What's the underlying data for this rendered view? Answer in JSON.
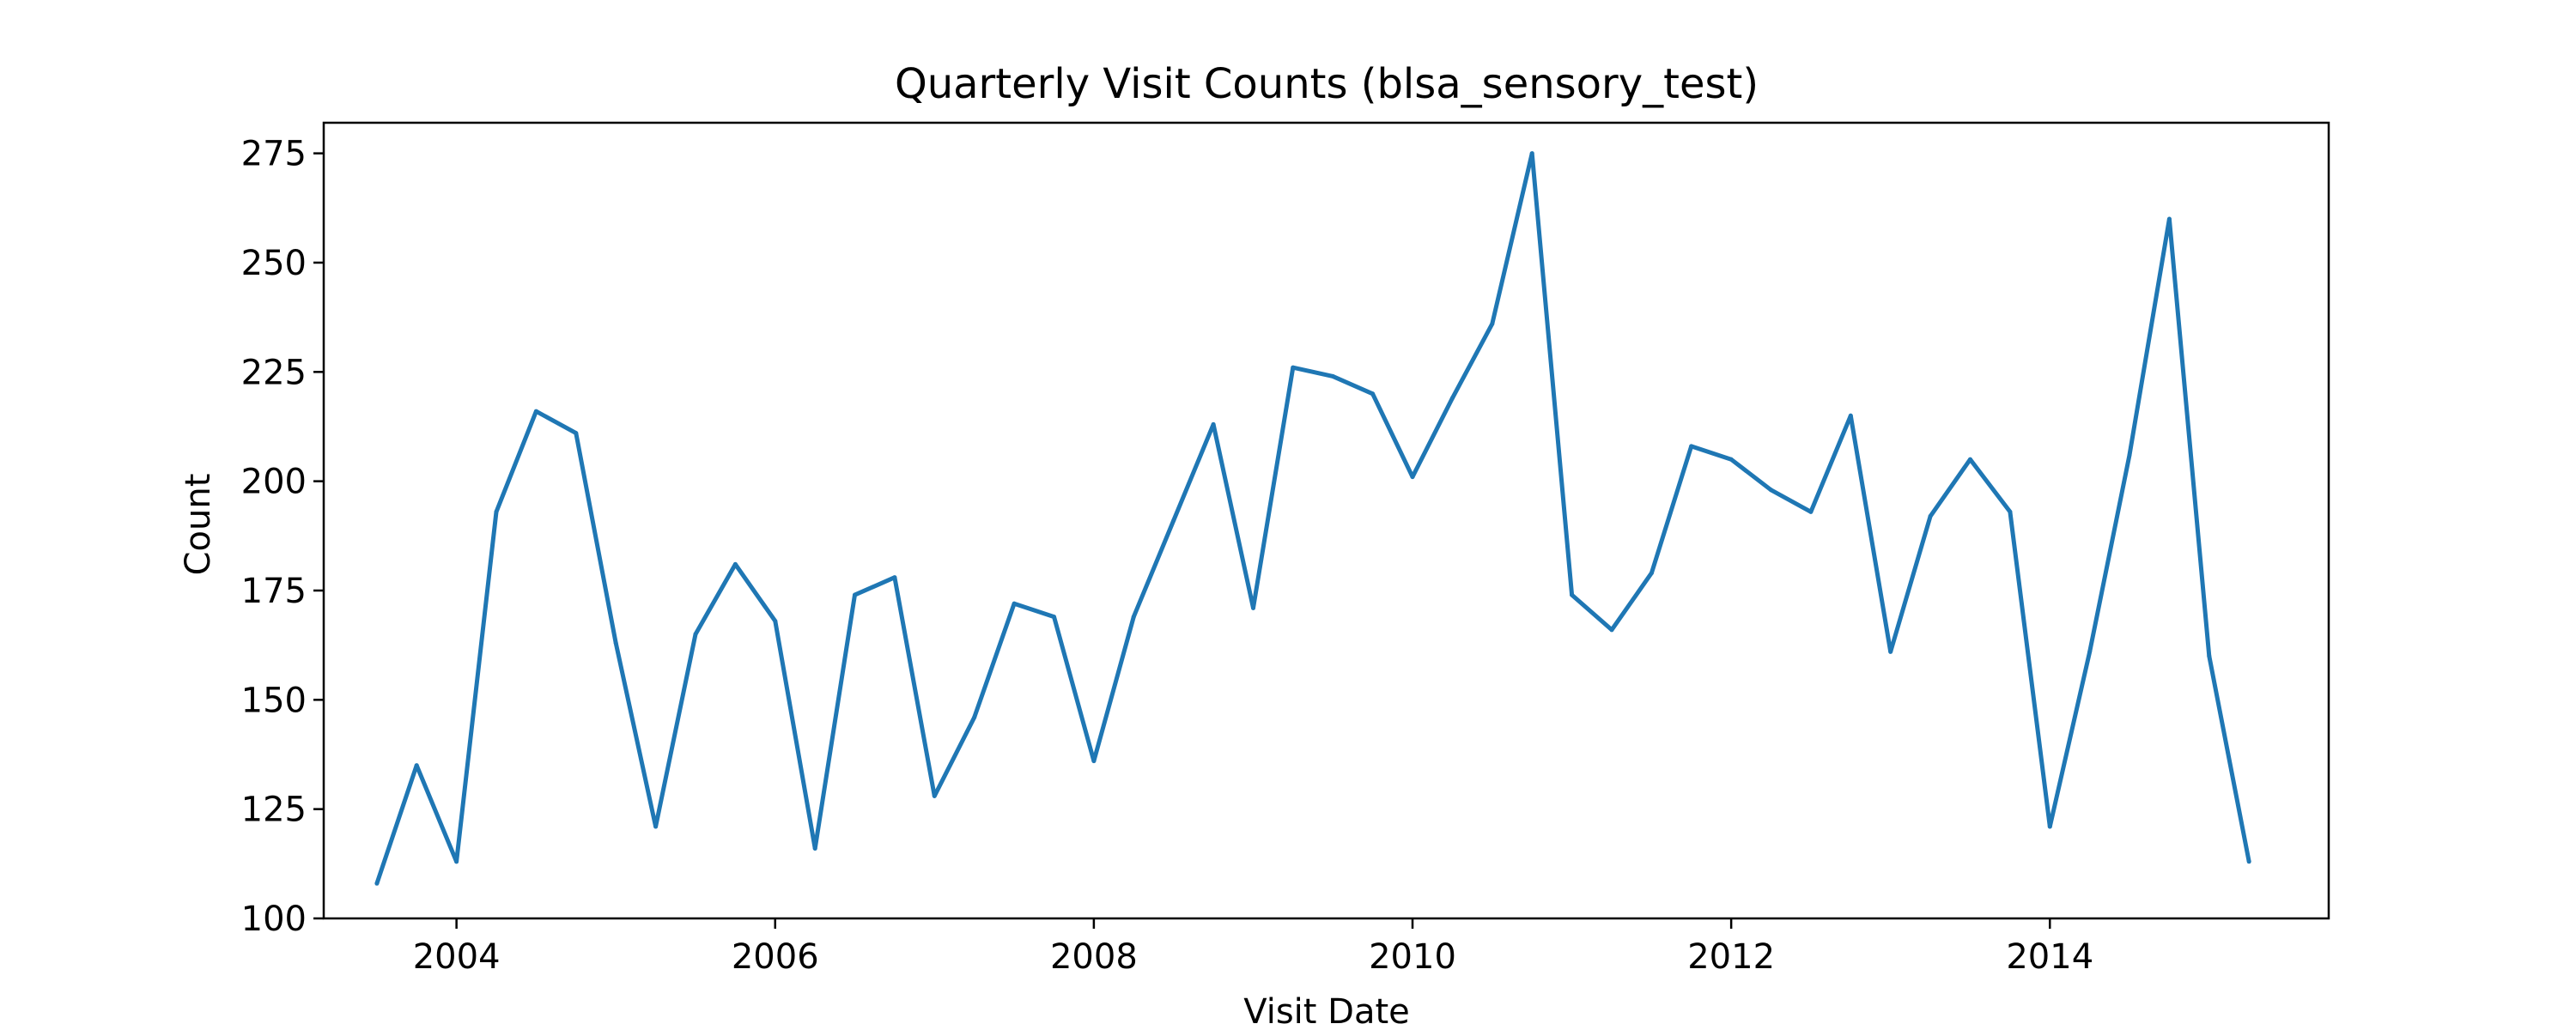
{
  "chart_data": {
    "type": "line",
    "title": "Quarterly Visit Counts (blsa_sensory_test)",
    "xlabel": "Visit Date",
    "ylabel": "Count",
    "x_ticks": [
      "2004",
      "2006",
      "2008",
      "2010",
      "2012",
      "2014"
    ],
    "y_ticks": [
      100,
      125,
      150,
      175,
      200,
      225,
      250,
      275
    ],
    "xlim": [
      "2003-03",
      "2015-10"
    ],
    "ylim": [
      100,
      282
    ],
    "grid": false,
    "line_color": "#1f77b4",
    "series": [
      {
        "x": [
          "2003-07-01",
          "2003-10-01",
          "2004-01-01",
          "2004-04-01",
          "2004-07-01",
          "2004-10-01",
          "2005-01-01",
          "2005-04-01",
          "2005-07-01",
          "2005-10-01",
          "2006-01-01",
          "2006-04-01",
          "2006-07-01",
          "2006-10-01",
          "2007-01-01",
          "2007-04-01",
          "2007-07-01",
          "2007-10-01",
          "2008-01-01",
          "2008-04-01",
          "2008-07-01",
          "2008-10-01",
          "2009-01-01",
          "2009-04-01",
          "2009-07-01",
          "2009-10-01",
          "2010-01-01",
          "2010-04-01",
          "2010-07-01",
          "2010-10-01",
          "2011-01-01",
          "2011-04-01",
          "2011-07-01",
          "2011-10-01",
          "2012-01-01",
          "2012-04-01",
          "2012-07-01",
          "2012-10-01",
          "2013-01-01",
          "2013-04-01",
          "2013-07-01",
          "2013-10-01",
          "2014-01-01",
          "2014-04-01",
          "2014-07-01",
          "2014-10-01",
          "2015-01-01",
          "2015-04-01"
        ],
        "values": [
          108,
          135,
          113,
          193,
          216,
          211,
          163,
          121,
          165,
          181,
          168,
          116,
          174,
          178,
          128,
          146,
          172,
          169,
          136,
          169,
          191,
          213,
          171,
          226,
          224,
          220,
          201,
          219,
          236,
          275,
          174,
          166,
          179,
          208,
          205,
          198,
          193,
          215,
          161,
          192,
          205,
          193,
          121,
          161,
          206,
          260,
          160,
          113
        ]
      }
    ]
  }
}
